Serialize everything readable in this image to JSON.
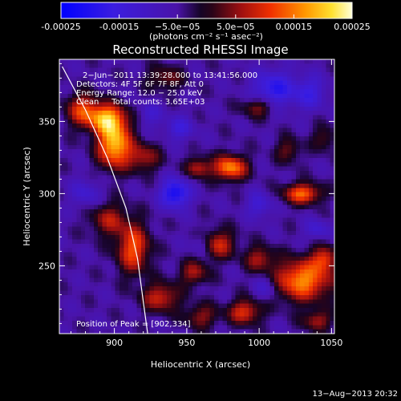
{
  "chart_data": {
    "type": "heatmap",
    "title": "Reconstructed RHESSI Image",
    "xlabel": "Heliocentric X (arcsec)",
    "ylabel": "Heliocentric Y (arcsec)",
    "xlim": [
      862,
      1052
    ],
    "ylim": [
      203,
      393
    ],
    "x_ticks": [
      {
        "value": 900,
        "label": "900"
      },
      {
        "value": 950,
        "label": "950"
      },
      {
        "value": 1000,
        "label": "1000"
      },
      {
        "value": 1050,
        "label": "1050"
      }
    ],
    "y_ticks": [
      {
        "value": 250,
        "label": "250"
      },
      {
        "value": 300,
        "label": "300"
      },
      {
        "value": 350,
        "label": "350"
      }
    ],
    "colorbar": {
      "range": [
        -0.00025,
        0.00025
      ],
      "ticks": [
        {
          "value": -0.00025,
          "label": "-0.00025"
        },
        {
          "value": -0.00015,
          "label": "-0.00015"
        },
        {
          "value": -5e-05,
          "label": "−5.0e−05"
        },
        {
          "value": 5e-05,
          "label": "5.0e−05"
        },
        {
          "value": 0.00015,
          "label": "0.00015"
        },
        {
          "value": 0.00025,
          "label": "0.00025"
        }
      ],
      "unit_label": "(photons cm⁻² s⁻¹ asec⁻²)"
    },
    "annotations": [
      "2−Jun−2011 13:39:28.000 to 13:41:56.000",
      "Detectors: 4F 5F 6F 7F 8F, Att 0",
      "Energy Range: 12.0 − 25.0 keV",
      "Clean     Total counts: 3.65E+03"
    ],
    "peak_label": "Position of Peak = [902,334]",
    "peak": [
      902,
      334
    ],
    "limb_curve": [
      [
        864,
        388
      ],
      [
        880,
        358
      ],
      [
        895,
        325
      ],
      [
        908,
        290
      ],
      [
        916,
        255
      ],
      [
        920,
        225
      ],
      [
        923,
        203
      ]
    ],
    "blobs": [
      {
        "x": 900,
        "y": 334,
        "sx": 8,
        "sy": 11,
        "a": 1.0
      },
      {
        "x": 895,
        "y": 352,
        "sx": 9,
        "sy": 7,
        "a": 0.85
      },
      {
        "x": 878,
        "y": 358,
        "sx": 8,
        "sy": 8,
        "a": 0.6
      },
      {
        "x": 920,
        "y": 325,
        "sx": 8,
        "sy": 7,
        "a": 0.45
      },
      {
        "x": 913,
        "y": 262,
        "sx": 8,
        "sy": 12,
        "a": 0.7
      },
      {
        "x": 932,
        "y": 228,
        "sx": 9,
        "sy": 7,
        "a": 0.55
      },
      {
        "x": 896,
        "y": 282,
        "sx": 9,
        "sy": 8,
        "a": 0.45
      },
      {
        "x": 980,
        "y": 318,
        "sx": 8,
        "sy": 6,
        "a": 0.85
      },
      {
        "x": 958,
        "y": 318,
        "sx": 6,
        "sy": 5,
        "a": 0.5
      },
      {
        "x": 1030,
        "y": 300,
        "sx": 9,
        "sy": 5,
        "a": 0.75
      },
      {
        "x": 1000,
        "y": 360,
        "sx": 8,
        "sy": 5,
        "a": 0.45
      },
      {
        "x": 972,
        "y": 265,
        "sx": 8,
        "sy": 7,
        "a": 0.55
      },
      {
        "x": 1030,
        "y": 240,
        "sx": 14,
        "sy": 10,
        "a": 0.85
      },
      {
        "x": 1045,
        "y": 255,
        "sx": 6,
        "sy": 6,
        "a": 0.55
      },
      {
        "x": 1000,
        "y": 255,
        "sx": 7,
        "sy": 6,
        "a": 0.45
      },
      {
        "x": 990,
        "y": 218,
        "sx": 8,
        "sy": 6,
        "a": 0.6
      },
      {
        "x": 955,
        "y": 245,
        "sx": 7,
        "sy": 6,
        "a": 0.45
      },
      {
        "x": 960,
        "y": 215,
        "sx": 8,
        "sy": 6,
        "a": 0.4
      },
      {
        "x": 1040,
        "y": 212,
        "sx": 7,
        "sy": 5,
        "a": 0.45
      },
      {
        "x": 1020,
        "y": 330,
        "sx": 6,
        "sy": 6,
        "a": 0.35
      },
      {
        "x": 935,
        "y": 380,
        "sx": 9,
        "sy": 6,
        "a": 0.35
      },
      {
        "x": 1045,
        "y": 338,
        "sx": 6,
        "sy": 6,
        "a": 0.3
      },
      {
        "x": 1010,
        "y": 372,
        "sx": 10,
        "sy": 9,
        "a": -0.55
      },
      {
        "x": 942,
        "y": 300,
        "sx": 7,
        "sy": 7,
        "a": -0.7
      },
      {
        "x": 1035,
        "y": 370,
        "sx": 8,
        "sy": 8,
        "a": -0.4
      },
      {
        "x": 945,
        "y": 345,
        "sx": 7,
        "sy": 6,
        "a": -0.35
      },
      {
        "x": 1000,
        "y": 292,
        "sx": 6,
        "sy": 6,
        "a": -0.35
      },
      {
        "x": 960,
        "y": 265,
        "sx": 5,
        "sy": 5,
        "a": -0.25
      },
      {
        "x": 1040,
        "y": 275,
        "sx": 6,
        "sy": 5,
        "a": -0.3
      },
      {
        "x": 880,
        "y": 300,
        "sx": 7,
        "sy": 7,
        "a": -0.3
      },
      {
        "x": 1005,
        "y": 235,
        "sx": 6,
        "sy": 6,
        "a": -0.3
      },
      {
        "x": 925,
        "y": 355,
        "sx": 6,
        "sy": 6,
        "a": -0.25
      }
    ]
  },
  "footer": {
    "timestamp": "13−Aug−2013 20:32"
  }
}
